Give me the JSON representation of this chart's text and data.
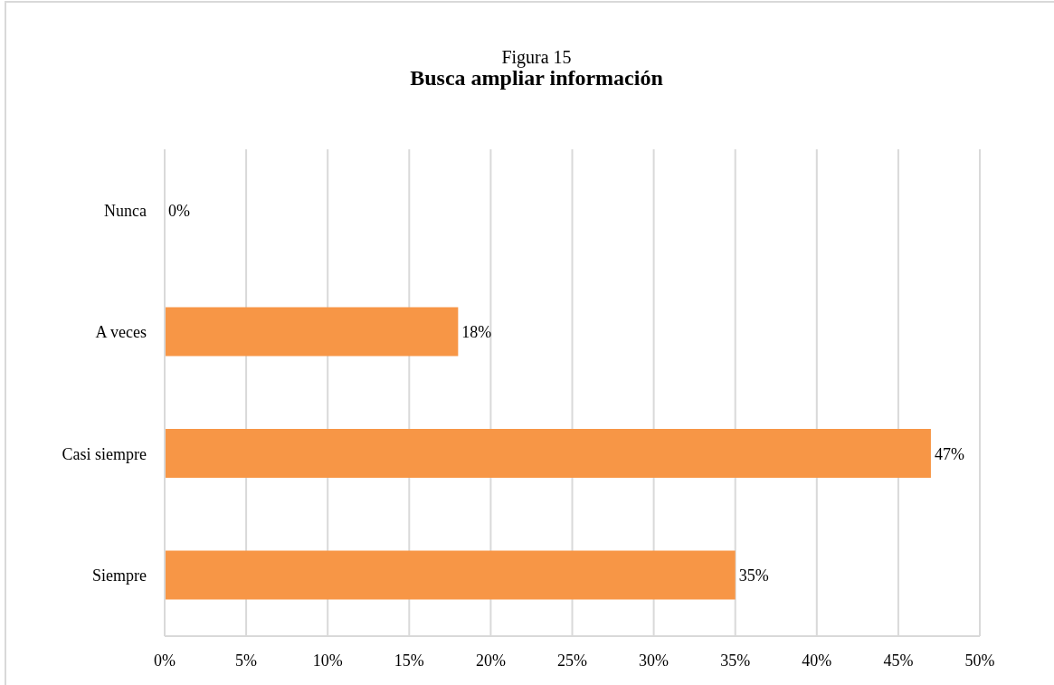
{
  "chart_data": {
    "type": "bar",
    "orientation": "horizontal",
    "title": "Figura 15",
    "subtitle": "Busca ampliar información",
    "categories": [
      "Nunca",
      "A veces",
      "Casi siempre",
      "Siempre"
    ],
    "values": [
      0,
      18,
      47,
      35
    ],
    "color": "#f79646",
    "value_labels": [
      "0%",
      "18%",
      "47%",
      "35%"
    ],
    "xlim": [
      0,
      50
    ],
    "xticks": [
      {
        "value": 0,
        "label": "0%"
      },
      {
        "value": 5,
        "label": "5%"
      },
      {
        "value": 10,
        "label": "10%"
      },
      {
        "value": 15,
        "label": "15%"
      },
      {
        "value": 20,
        "label": "20%"
      },
      {
        "value": 25,
        "label": "25%"
      },
      {
        "value": 30,
        "label": "30%"
      },
      {
        "value": 35,
        "label": "35%"
      },
      {
        "value": 40,
        "label": "40%"
      },
      {
        "value": 45,
        "label": "45%"
      },
      {
        "value": 50,
        "label": "50%"
      }
    ],
    "grid": "x"
  }
}
